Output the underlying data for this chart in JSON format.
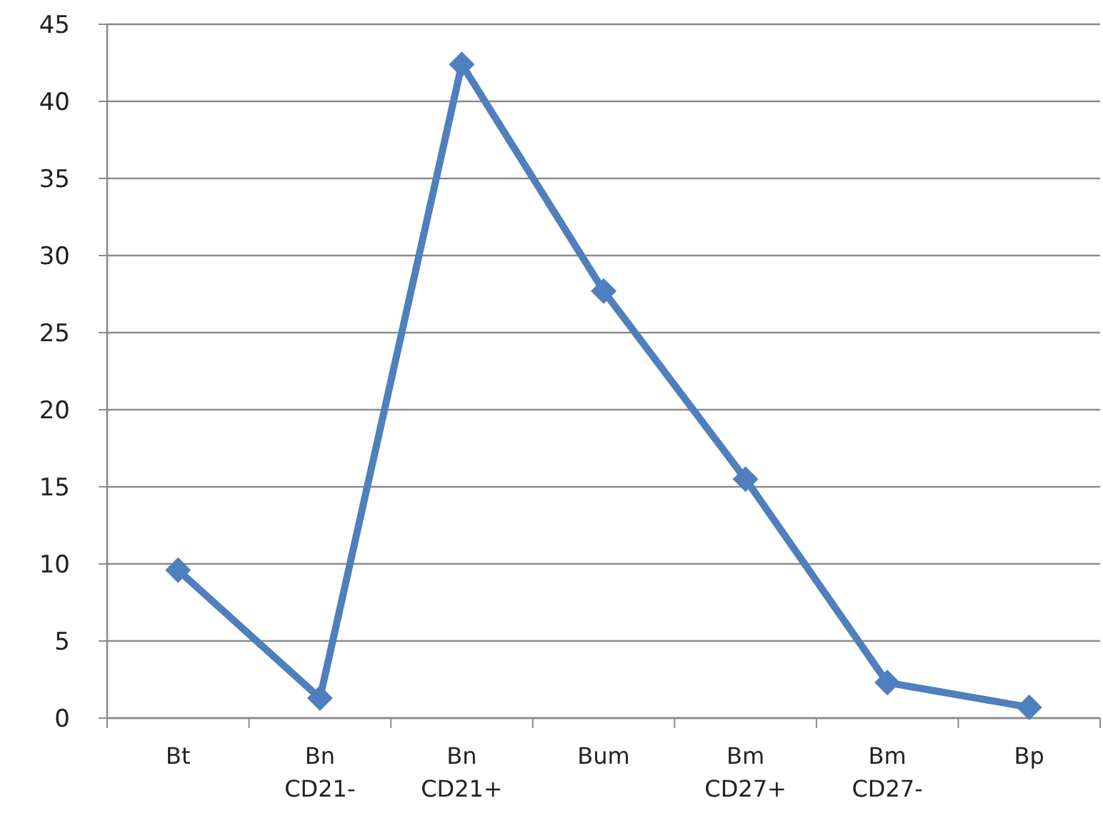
{
  "chart_data": {
    "type": "line",
    "categories": [
      "Bt",
      "Bn CD21-",
      "Bn CD21+",
      "Bum",
      "Bm CD27+",
      "Bm CD27-",
      "Bp"
    ],
    "series": [
      {
        "color": "#4f7fbc",
        "values": [
          9.6,
          1.3,
          42.4,
          27.7,
          15.5,
          2.3,
          0.7
        ]
      }
    ],
    "ylim": [
      0,
      45
    ],
    "yticks": [
      0,
      5,
      10,
      15,
      20,
      25,
      30,
      35,
      40,
      45
    ],
    "grid": "y",
    "marker": "diamond",
    "line_style": "solid"
  }
}
